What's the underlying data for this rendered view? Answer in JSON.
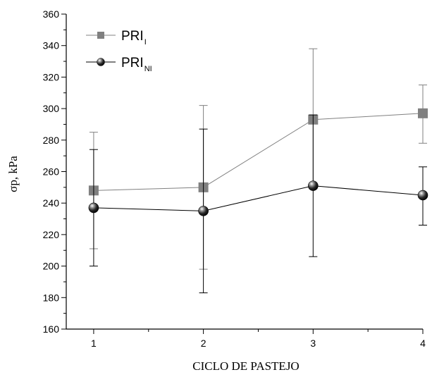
{
  "chart_data": {
    "type": "line",
    "xlabel": "CICLO DE PASTEJO",
    "ylabel": "σp, kPa",
    "x": [
      1,
      2,
      3,
      4
    ],
    "xticks": [
      "1",
      "2",
      "3",
      "4"
    ],
    "xlim": [
      0.75,
      4.0
    ],
    "ylim": [
      160,
      360
    ],
    "yticks": [
      "160",
      "180",
      "200",
      "220",
      "240",
      "260",
      "280",
      "300",
      "320",
      "340",
      "360"
    ],
    "grid": false,
    "legend_position": "top-left",
    "series": [
      {
        "name": "PRI",
        "name_sub": "I",
        "marker": "square",
        "color": "#808080",
        "values": [
          248,
          250,
          293,
          297
        ],
        "err_low": [
          211,
          198,
          249,
          278
        ],
        "err_high": [
          285,
          302,
          338,
          315
        ]
      },
      {
        "name": "PRI",
        "name_sub": "NI",
        "marker": "sphere",
        "color": "#000000",
        "values": [
          237,
          235,
          251,
          245
        ],
        "err_low": [
          200,
          183,
          206,
          226
        ],
        "err_high": [
          274,
          287,
          296,
          263
        ]
      }
    ]
  }
}
